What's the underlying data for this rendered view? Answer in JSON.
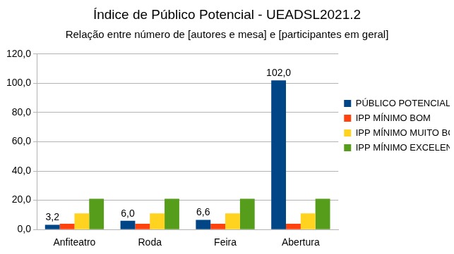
{
  "chart_data": {
    "type": "bar",
    "title": "Índice de Público Potencial - UEADSL2021.2",
    "subtitle": "Relação entre número de [autores e mesa] e [participantes em geral]",
    "categories": [
      "Anfiteatro",
      "Roda",
      "Feira",
      "Abertura"
    ],
    "series": [
      {
        "name": "PÚBLICO POTENCIAL",
        "color": "#004586",
        "values": [
          3.2,
          6.0,
          6.6,
          102.0
        ],
        "data_labels": true,
        "value_labels": [
          "3,2",
          "6,0",
          "6,6",
          "102,0"
        ]
      },
      {
        "name": "IPP MÍNIMO BOM",
        "color": "#ff420e",
        "values": [
          4,
          4,
          4,
          4
        ]
      },
      {
        "name": "IPP MÍNIMO MUITO BOM",
        "color": "#ffd320",
        "values": [
          11,
          11,
          11,
          11
        ]
      },
      {
        "name": "IPP MÍNIMO EXCELENTE",
        "color": "#579d1c",
        "values": [
          21,
          21,
          21,
          21
        ]
      }
    ],
    "ylim": [
      0,
      120
    ],
    "yticks": [
      {
        "value": 0,
        "label": "0,0"
      },
      {
        "value": 20,
        "label": "20,0"
      },
      {
        "value": 40,
        "label": "40,0"
      },
      {
        "value": 60,
        "label": "60,0"
      },
      {
        "value": 80,
        "label": "80,0"
      },
      {
        "value": 100,
        "label": "100,0"
      },
      {
        "value": 120,
        "label": "120,0"
      }
    ],
    "grid": true,
    "legend": "right"
  }
}
